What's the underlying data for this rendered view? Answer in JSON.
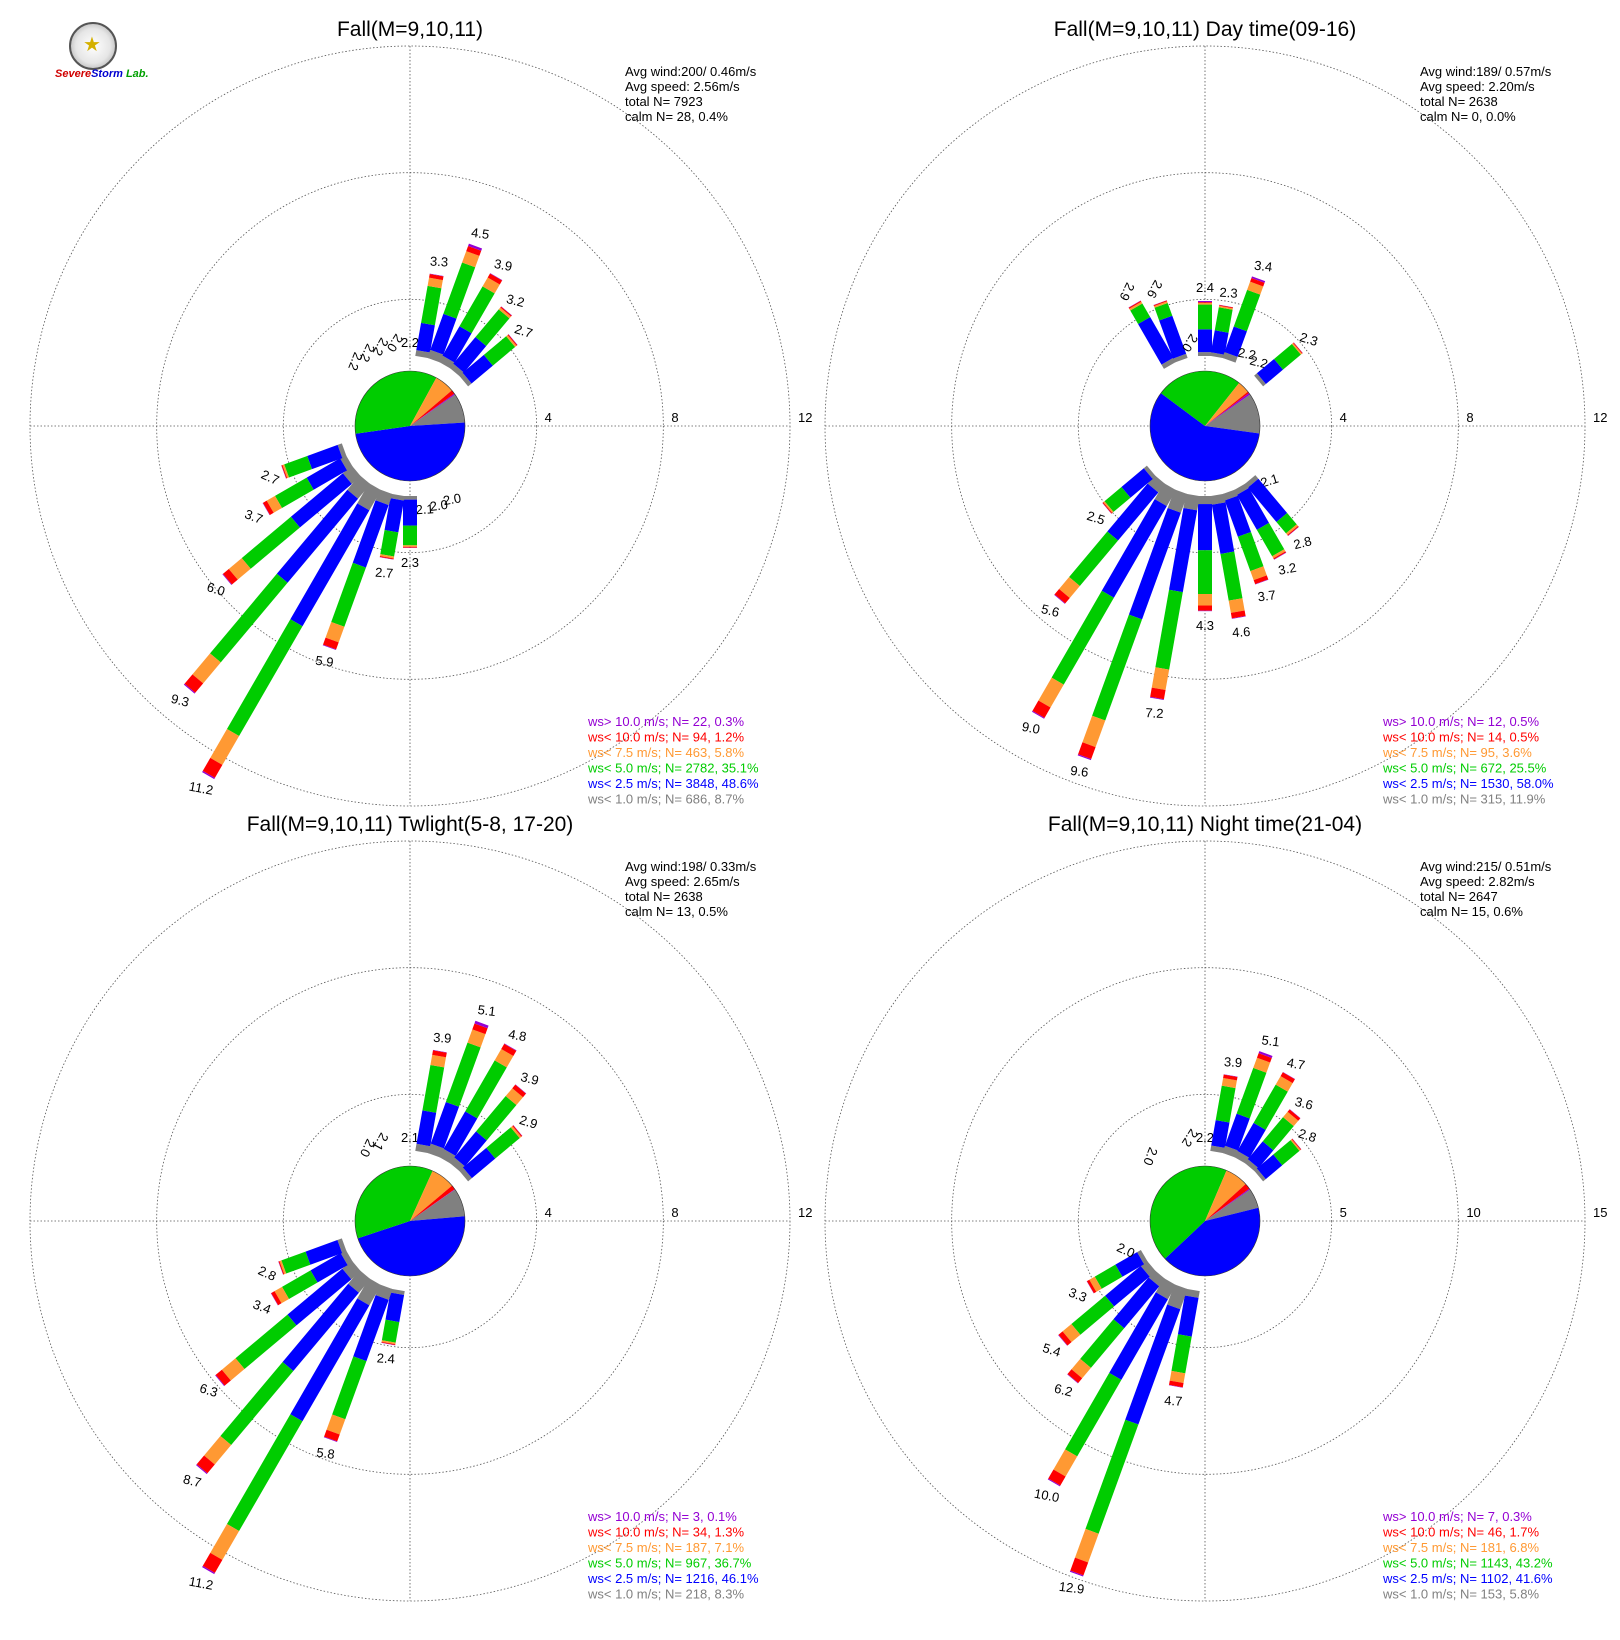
{
  "colors": {
    "gt10": "#9400D3",
    "lt10": "#FF0000",
    "lt75": "#FF9933",
    "lt5": "#00CC00",
    "lt25": "#0000FF",
    "lt1": "#808080",
    "grid": "#555555"
  },
  "logo": {
    "text_a": "Severe",
    "text_b": "Storm",
    "text_c": "Lab."
  },
  "chart_data": [
    {
      "type": "windrose",
      "title": "Fall(M=9,10,11)",
      "ring_labels": [
        "4",
        "8",
        "12"
      ],
      "rmax": 12,
      "stats": [
        "Avg wind:200/ 0.46m/s",
        "Avg speed: 2.56m/s",
        "total N=        7923",
        "calm N=      28,   0.4%"
      ],
      "legend": [
        {
          "key": "gt10",
          "text": "ws> 10.0 m/s; N=    22,  0.3%"
        },
        {
          "key": "lt10",
          "text": "ws< 10.0 m/s; N=    94,  1.2%"
        },
        {
          "key": "lt75",
          "text": "ws<  7.5 m/s; N=   463,  5.8%"
        },
        {
          "key": "lt5",
          "text": "ws<  5.0 m/s; N=  2782, 35.1%"
        },
        {
          "key": "lt25",
          "text": "ws<  2.5 m/s; N=  3848, 48.6%"
        },
        {
          "key": "lt1",
          "text": "ws<  1.0 m/s; N=   686,  8.7%"
        }
      ],
      "pie": {
        "lt1": 8.7,
        "lt25": 48.6,
        "lt5": 35.1,
        "lt75": 5.8,
        "lt10": 1.2,
        "gt10": 0.3
      },
      "bars": [
        {
          "dir": 0,
          "total": 2.2,
          "label": "2.2"
        },
        {
          "dir": 10,
          "total": 3.3,
          "label": "3.3"
        },
        {
          "dir": 20,
          "total": 4.5,
          "label": "4.5"
        },
        {
          "dir": 30,
          "total": 3.9,
          "label": "3.9"
        },
        {
          "dir": 40,
          "total": 3.2,
          "label": "3.2"
        },
        {
          "dir": 50,
          "total": 2.7,
          "label": "2.7"
        },
        {
          "dir": 60,
          "total": 1.8
        },
        {
          "dir": 70,
          "total": 1.6
        },
        {
          "dir": 80,
          "total": 1.5
        },
        {
          "dir": 90,
          "total": 1.5
        },
        {
          "dir": 100,
          "total": 1.5
        },
        {
          "dir": 110,
          "total": 1.6
        },
        {
          "dir": 120,
          "total": 1.6
        },
        {
          "dir": 130,
          "total": 1.7
        },
        {
          "dir": 140,
          "total": 1.8
        },
        {
          "dir": 150,
          "total": 2.0,
          "label": "2.0"
        },
        {
          "dir": 160,
          "total": 2.0,
          "label": "2.0"
        },
        {
          "dir": 170,
          "total": 2.1,
          "label": "2.1"
        },
        {
          "dir": 180,
          "total": 2.3,
          "label": "2.3"
        },
        {
          "dir": 190,
          "total": 2.7,
          "label": "2.7"
        },
        {
          "dir": 200,
          "total": 5.9,
          "label": "5.9"
        },
        {
          "dir": 210,
          "total": 11.2,
          "label": "11.2"
        },
        {
          "dir": 220,
          "total": 9.3,
          "label": "9.3"
        },
        {
          "dir": 230,
          "total": 6.0,
          "label": "6.0"
        },
        {
          "dir": 240,
          "total": 3.7,
          "label": "3.7"
        },
        {
          "dir": 250,
          "total": 2.7,
          "label": "2.7"
        },
        {
          "dir": 260,
          "total": 1.9
        },
        {
          "dir": 270,
          "total": 1.8
        },
        {
          "dir": 280,
          "total": 1.8
        },
        {
          "dir": 290,
          "total": 1.9
        },
        {
          "dir": 300,
          "total": 1.9
        },
        {
          "dir": 310,
          "total": 1.9
        },
        {
          "dir": 320,
          "total": 2.2,
          "label": "2.2"
        },
        {
          "dir": 330,
          "total": 2.2,
          "label": "2.2"
        },
        {
          "dir": 340,
          "total": 2.2,
          "label": "2.2"
        },
        {
          "dir": 350,
          "total": 2.0,
          "label": "2.0"
        }
      ]
    },
    {
      "type": "windrose",
      "title": "Fall(M=9,10,11) Day time(09-16)",
      "ring_labels": [
        "4",
        "8",
        "12"
      ],
      "rmax": 12,
      "stats": [
        "Avg wind:189/ 0.57m/s",
        "Avg speed: 2.20m/s",
        "total N=        2638",
        "calm N=        0,   0.0%"
      ],
      "legend": [
        {
          "key": "gt10",
          "text": "ws> 10.0 m/s; N=    12,  0.5%"
        },
        {
          "key": "lt10",
          "text": "ws< 10.0 m/s; N=    14,  0.5%"
        },
        {
          "key": "lt75",
          "text": "ws<  7.5 m/s; N=    95,  3.6%"
        },
        {
          "key": "lt5",
          "text": "ws<  5.0 m/s; N=   672, 25.5%"
        },
        {
          "key": "lt25",
          "text": "ws<  2.5 m/s; N=  1530, 58.0%"
        },
        {
          "key": "lt1",
          "text": "ws<  1.0 m/s; N=   315, 11.9%"
        }
      ],
      "pie": {
        "lt1": 11.9,
        "lt25": 58.0,
        "lt5": 25.5,
        "lt75": 3.6,
        "lt10": 0.5,
        "gt10": 0.5
      },
      "bars": [
        {
          "dir": 0,
          "total": 2.4,
          "label": "2.4"
        },
        {
          "dir": 10,
          "total": 2.3,
          "label": "2.3"
        },
        {
          "dir": 20,
          "total": 3.4,
          "label": "3.4"
        },
        {
          "dir": 30,
          "total": 2.2,
          "label": "2.2"
        },
        {
          "dir": 40,
          "total": 2.2,
          "label": "2.2"
        },
        {
          "dir": 50,
          "total": 2.3,
          "label": "2.3"
        },
        {
          "dir": 60,
          "total": 1.6
        },
        {
          "dir": 70,
          "total": 1.4
        },
        {
          "dir": 80,
          "total": 1.3
        },
        {
          "dir": 90,
          "total": 1.3
        },
        {
          "dir": 100,
          "total": 1.3
        },
        {
          "dir": 110,
          "total": 1.4
        },
        {
          "dir": 120,
          "total": 1.6
        },
        {
          "dir": 130,
          "total": 2.1,
          "label": "2.1"
        },
        {
          "dir": 140,
          "total": 2.8,
          "label": "2.8"
        },
        {
          "dir": 150,
          "total": 3.2,
          "label": "3.2"
        },
        {
          "dir": 160,
          "total": 3.7,
          "label": "3.7"
        },
        {
          "dir": 170,
          "total": 4.6,
          "label": "4.6"
        },
        {
          "dir": 180,
          "total": 4.3,
          "label": "4.3"
        },
        {
          "dir": 190,
          "total": 7.2,
          "label": "7.2"
        },
        {
          "dir": 200,
          "total": 9.6,
          "label": "9.6"
        },
        {
          "dir": 210,
          "total": 9.0,
          "label": "9.0"
        },
        {
          "dir": 220,
          "total": 5.6,
          "label": "5.6"
        },
        {
          "dir": 230,
          "total": 2.5,
          "label": "2.5"
        },
        {
          "dir": 240,
          "total": 1.9
        },
        {
          "dir": 250,
          "total": 1.7
        },
        {
          "dir": 260,
          "total": 1.6
        },
        {
          "dir": 270,
          "total": 1.6
        },
        {
          "dir": 280,
          "total": 1.7
        },
        {
          "dir": 290,
          "total": 1.8
        },
        {
          "dir": 300,
          "total": 1.8
        },
        {
          "dir": 310,
          "total": 1.9
        },
        {
          "dir": 320,
          "total": 2.0
        },
        {
          "dir": 330,
          "total": 2.9,
          "label": "2.9"
        },
        {
          "dir": 340,
          "total": 2.6,
          "label": "2.6"
        },
        {
          "dir": 350,
          "total": 2.0,
          "label": "2.0"
        }
      ]
    },
    {
      "type": "windrose",
      "title": "Fall(M=9,10,11) Twlight(5-8, 17-20)",
      "ring_labels": [
        "4",
        "8",
        "12"
      ],
      "rmax": 12,
      "stats": [
        "Avg wind:198/ 0.33m/s",
        "Avg speed: 2.65m/s",
        "total N=        2638",
        "calm N=      13,   0.5%"
      ],
      "legend": [
        {
          "key": "gt10",
          "text": "ws> 10.0 m/s; N=     3,  0.1%"
        },
        {
          "key": "lt10",
          "text": "ws< 10.0 m/s; N=    34,  1.3%"
        },
        {
          "key": "lt75",
          "text": "ws<  7.5 m/s; N=   187,  7.1%"
        },
        {
          "key": "lt5",
          "text": "ws<  5.0 m/s; N=   967, 36.7%"
        },
        {
          "key": "lt25",
          "text": "ws<  2.5 m/s; N=  1216, 46.1%"
        },
        {
          "key": "lt1",
          "text": "ws<  1.0 m/s; N=   218,  8.3%"
        }
      ],
      "pie": {
        "lt1": 8.3,
        "lt25": 46.1,
        "lt5": 36.7,
        "lt75": 7.1,
        "lt10": 1.3,
        "gt10": 0.1
      },
      "bars": [
        {
          "dir": 0,
          "total": 2.1,
          "label": "2.1"
        },
        {
          "dir": 10,
          "total": 3.9,
          "label": "3.9"
        },
        {
          "dir": 20,
          "total": 5.1,
          "label": "5.1"
        },
        {
          "dir": 30,
          "total": 4.8,
          "label": "4.8"
        },
        {
          "dir": 40,
          "total": 3.9,
          "label": "3.9"
        },
        {
          "dir": 50,
          "total": 2.9,
          "label": "2.9"
        },
        {
          "dir": 60,
          "total": 1.9
        },
        {
          "dir": 70,
          "total": 1.7
        },
        {
          "dir": 80,
          "total": 1.7
        },
        {
          "dir": 90,
          "total": 1.7
        },
        {
          "dir": 100,
          "total": 1.7
        },
        {
          "dir": 110,
          "total": 1.7
        },
        {
          "dir": 120,
          "total": 1.7
        },
        {
          "dir": 130,
          "total": 1.6
        },
        {
          "dir": 140,
          "total": 1.6
        },
        {
          "dir": 150,
          "total": 1.6
        },
        {
          "dir": 160,
          "total": 1.7
        },
        {
          "dir": 170,
          "total": 1.8
        },
        {
          "dir": 180,
          "total": 2.0
        },
        {
          "dir": 190,
          "total": 2.4,
          "label": "2.4"
        },
        {
          "dir": 200,
          "total": 5.8,
          "label": "5.8"
        },
        {
          "dir": 210,
          "total": 11.2,
          "label": "11.2"
        },
        {
          "dir": 220,
          "total": 8.7,
          "label": "8.7"
        },
        {
          "dir": 230,
          "total": 6.3,
          "label": "6.3"
        },
        {
          "dir": 240,
          "total": 3.4,
          "label": "3.4"
        },
        {
          "dir": 250,
          "total": 2.8,
          "label": "2.8"
        },
        {
          "dir": 260,
          "total": 1.9
        },
        {
          "dir": 270,
          "total": 1.8
        },
        {
          "dir": 280,
          "total": 1.8
        },
        {
          "dir": 290,
          "total": 1.8
        },
        {
          "dir": 300,
          "total": 1.8
        },
        {
          "dir": 310,
          "total": 1.8
        },
        {
          "dir": 320,
          "total": 1.9
        },
        {
          "dir": 330,
          "total": 2.0,
          "label": "2.0"
        },
        {
          "dir": 340,
          "total": 2.1,
          "label": "2.1"
        },
        {
          "dir": 350,
          "total": 1.9
        }
      ]
    },
    {
      "type": "windrose",
      "title": "Fall(M=9,10,11) Night time(21-04)",
      "ring_labels": [
        "5",
        "10",
        "15"
      ],
      "rmax": 15,
      "stats": [
        "Avg wind:215/ 0.51m/s",
        "Avg speed: 2.82m/s",
        "total N=        2647",
        "calm N=      15,   0.6%"
      ],
      "legend": [
        {
          "key": "gt10",
          "text": "ws> 10.0 m/s; N=     7,  0.3%"
        },
        {
          "key": "lt10",
          "text": "ws< 10.0 m/s; N=    46,  1.7%"
        },
        {
          "key": "lt75",
          "text": "ws<  7.5 m/s; N=   181,  6.8%"
        },
        {
          "key": "lt5",
          "text": "ws<  5.0 m/s; N=  1143, 43.2%"
        },
        {
          "key": "lt25",
          "text": "ws<  2.5 m/s; N=  1102, 41.6%"
        },
        {
          "key": "lt1",
          "text": "ws<  1.0 m/s; N=   153,  5.8%"
        }
      ],
      "pie": {
        "lt1": 5.8,
        "lt25": 41.6,
        "lt5": 43.2,
        "lt75": 6.8,
        "lt10": 1.7,
        "gt10": 0.3
      },
      "bars": [
        {
          "dir": 0,
          "total": 2.2,
          "label": "2.2"
        },
        {
          "dir": 10,
          "total": 3.9,
          "label": "3.9"
        },
        {
          "dir": 20,
          "total": 5.1,
          "label": "5.1"
        },
        {
          "dir": 30,
          "total": 4.7,
          "label": "4.7"
        },
        {
          "dir": 40,
          "total": 3.6,
          "label": "3.6"
        },
        {
          "dir": 50,
          "total": 2.8,
          "label": "2.8"
        },
        {
          "dir": 60,
          "total": 1.9
        },
        {
          "dir": 70,
          "total": 1.7
        },
        {
          "dir": 80,
          "total": 1.7
        },
        {
          "dir": 90,
          "total": 1.6
        },
        {
          "dir": 100,
          "total": 1.6
        },
        {
          "dir": 110,
          "total": 1.6
        },
        {
          "dir": 120,
          "total": 1.5
        },
        {
          "dir": 130,
          "total": 1.4
        },
        {
          "dir": 140,
          "total": 1.4
        },
        {
          "dir": 150,
          "total": 1.4
        },
        {
          "dir": 160,
          "total": 1.4
        },
        {
          "dir": 170,
          "total": 1.5
        },
        {
          "dir": 180,
          "total": 1.6
        },
        {
          "dir": 190,
          "total": 4.7,
          "label": "4.7"
        },
        {
          "dir": 200,
          "total": 12.9,
          "label": "12.9"
        },
        {
          "dir": 210,
          "total": 10.0,
          "label": "10.0"
        },
        {
          "dir": 220,
          "total": 6.2,
          "label": "6.2"
        },
        {
          "dir": 230,
          "total": 5.4,
          "label": "5.4"
        },
        {
          "dir": 240,
          "total": 3.3,
          "label": "3.3"
        },
        {
          "dir": 250,
          "total": 2.0,
          "label": "2.0"
        },
        {
          "dir": 260,
          "total": 1.8
        },
        {
          "dir": 270,
          "total": 1.7
        },
        {
          "dir": 280,
          "total": 1.7
        },
        {
          "dir": 290,
          "total": 1.8
        },
        {
          "dir": 300,
          "total": 1.8
        },
        {
          "dir": 310,
          "total": 1.9
        },
        {
          "dir": 320,
          "total": 2.0,
          "label": "2.0"
        },
        {
          "dir": 330,
          "total": 1.9
        },
        {
          "dir": 340,
          "total": 2.0
        },
        {
          "dir": 350,
          "total": 2.2,
          "label": "2.2"
        }
      ]
    }
  ]
}
